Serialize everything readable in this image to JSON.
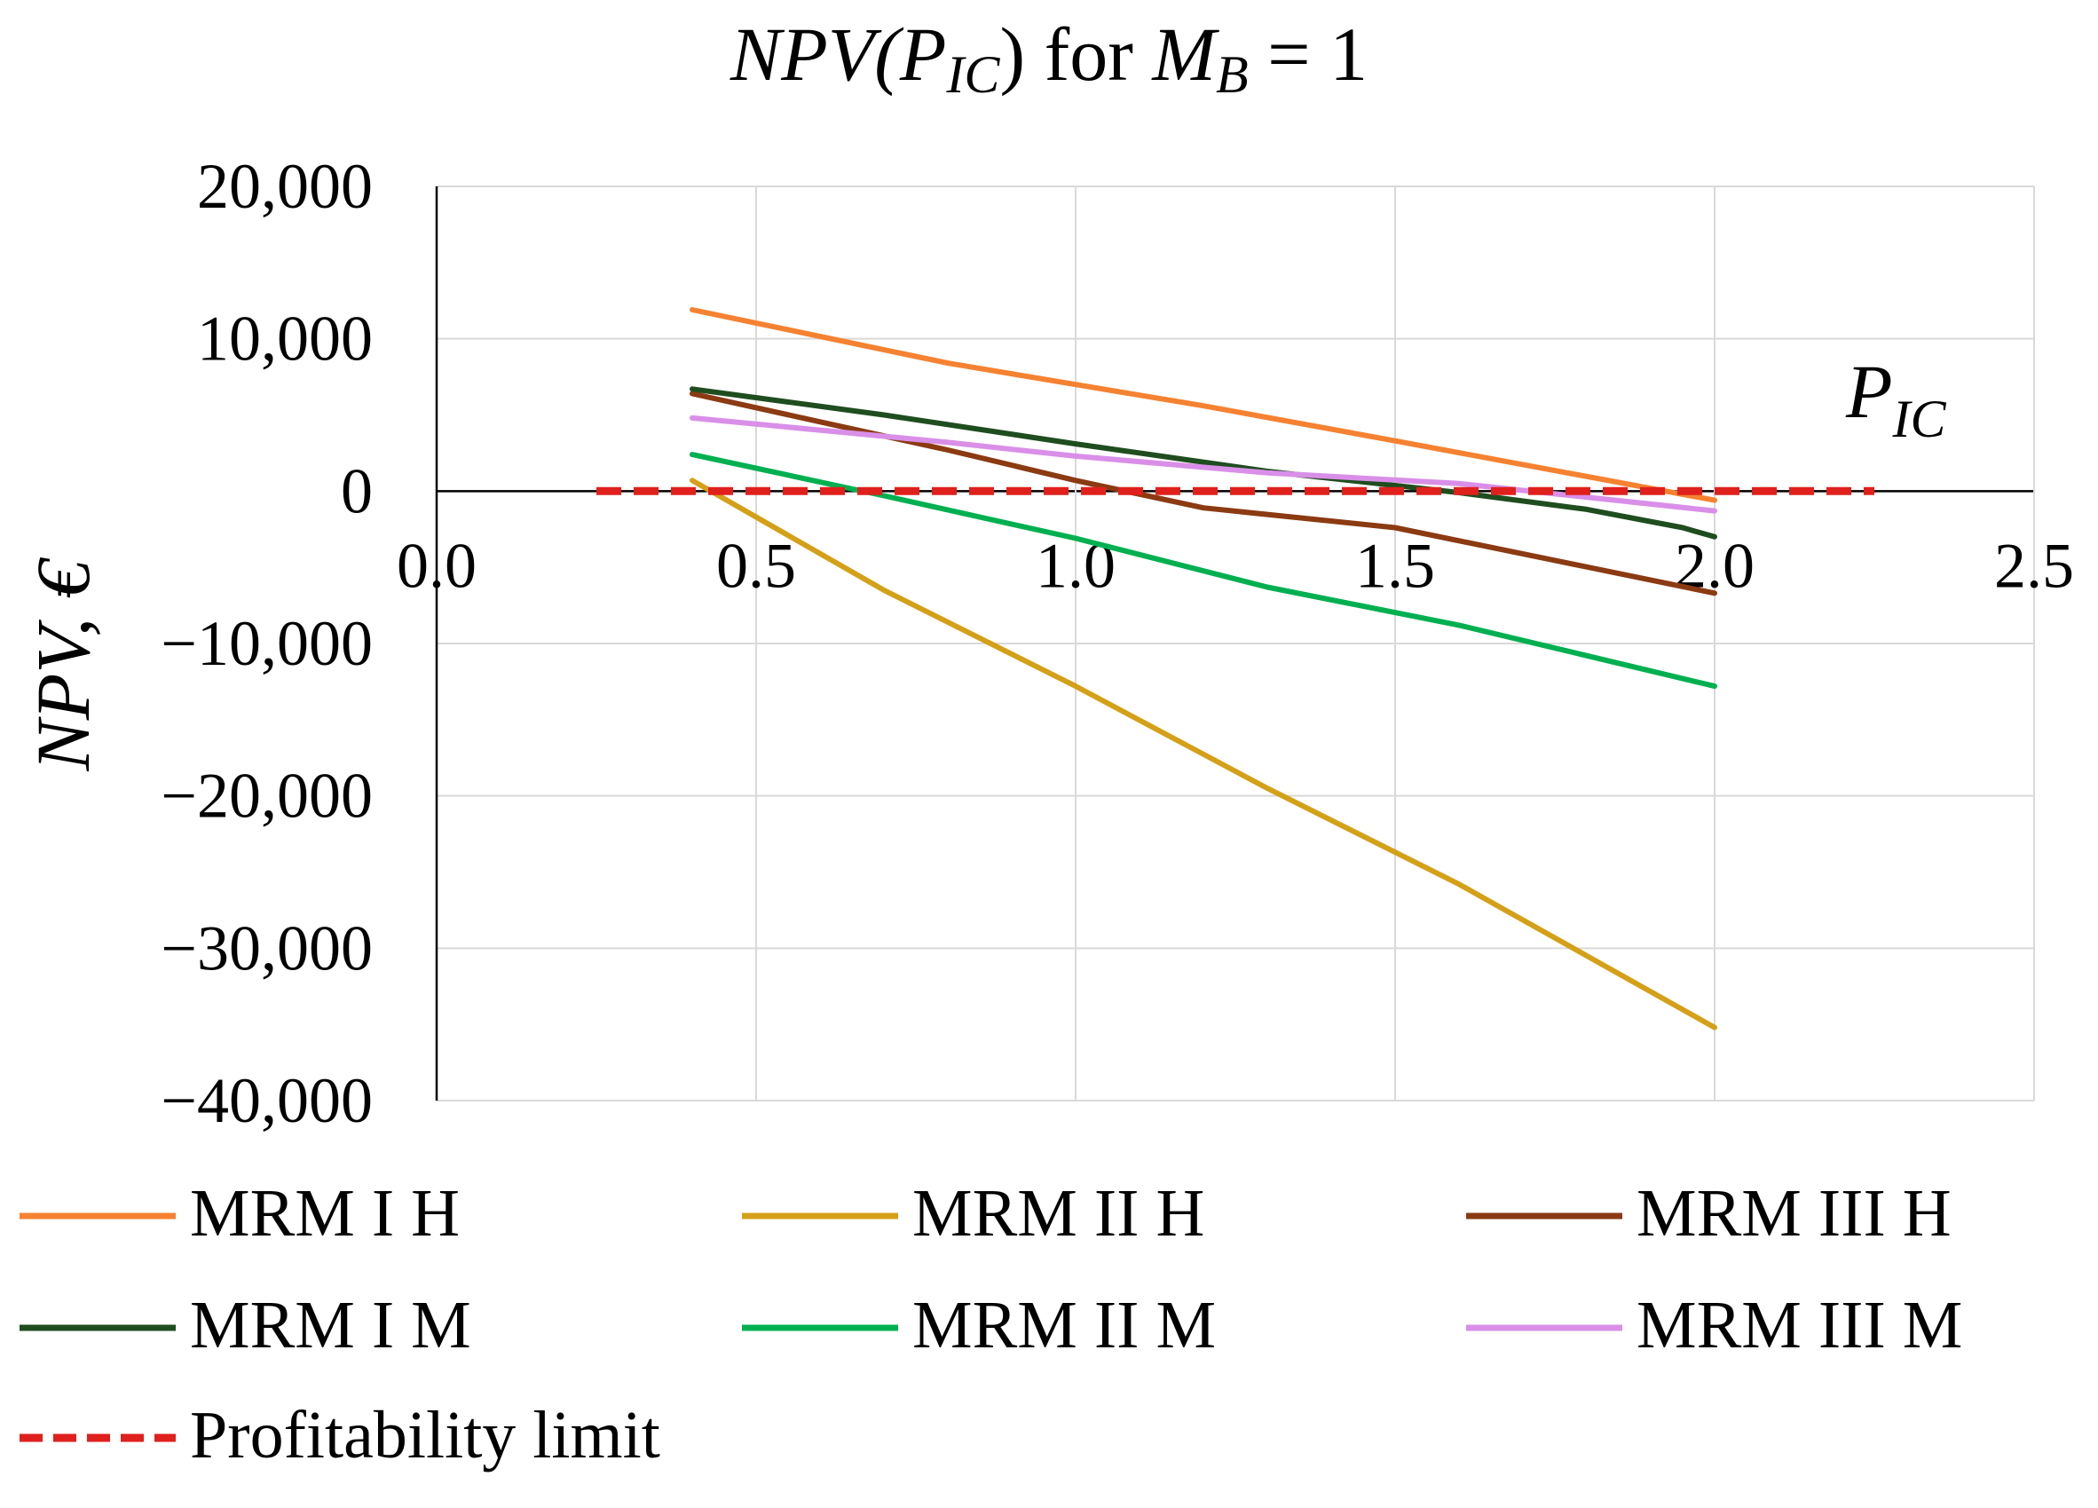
{
  "chart_data": {
    "type": "line",
    "title": {
      "main": "NPV(P",
      "main_sub": "IC",
      "main_close": ")",
      "for": " for ",
      "mb": "M",
      "mb_sub": "B",
      "equals": " = 1"
    },
    "xlabel": {
      "main": "P",
      "sub": "IC"
    },
    "ylabel": "NPV, €",
    "xlim": [
      0.0,
      2.5
    ],
    "ylim": [
      -40000,
      20000
    ],
    "x_ticks": [
      0.0,
      0.5,
      1.0,
      1.5,
      2.0,
      2.5
    ],
    "x_tick_labels": [
      "0.0",
      "0.5",
      "1.0",
      "1.5",
      "2.0",
      "2.5"
    ],
    "y_ticks": [
      20000,
      10000,
      0,
      -10000,
      -20000,
      -30000,
      -40000
    ],
    "y_tick_labels": [
      "20,000",
      "10,000",
      "0",
      "−10,000",
      "−20,000",
      "−30,000",
      "−40,000"
    ],
    "grid": true,
    "legend_position": "bottom",
    "series": [
      {
        "name": "MRM I H",
        "color": "#f58231",
        "dashed": false,
        "x": [
          0.4,
          0.8,
          1.0,
          1.2,
          1.5,
          2.0
        ],
        "y": [
          11900,
          8400,
          7000,
          5600,
          3300,
          -600
        ]
      },
      {
        "name": "MRM II H",
        "color": "#d4a017",
        "dashed": false,
        "x": [
          0.4,
          0.7,
          1.0,
          1.3,
          1.6,
          2.0
        ],
        "y": [
          700,
          -6500,
          -12800,
          -19500,
          -25800,
          -35200
        ]
      },
      {
        "name": "MRM III H",
        "color": "#8b3a12",
        "dashed": false,
        "x": [
          0.4,
          0.8,
          1.0,
          1.2,
          1.5,
          2.0
        ],
        "y": [
          6400,
          2700,
          700,
          -1100,
          -2400,
          -6700
        ]
      },
      {
        "name": "MRM I M",
        "color": "#1f4d1f",
        "dashed": false,
        "x": [
          0.4,
          0.7,
          1.0,
          1.3,
          1.6,
          1.8,
          1.95,
          2.0
        ],
        "y": [
          6700,
          5000,
          3100,
          1300,
          -100,
          -1200,
          -2400,
          -3000
        ]
      },
      {
        "name": "MRM II M",
        "color": "#00b050",
        "dashed": false,
        "x": [
          0.4,
          0.7,
          1.0,
          1.3,
          1.6,
          2.0
        ],
        "y": [
          2400,
          -300,
          -3100,
          -6300,
          -8800,
          -12800
        ]
      },
      {
        "name": "MRM III M",
        "color": "#d98fe8",
        "dashed": false,
        "x": [
          0.4,
          0.8,
          1.0,
          1.3,
          1.6,
          2.0
        ],
        "y": [
          4800,
          3200,
          2300,
          1200,
          500,
          -1300
        ]
      },
      {
        "name": "Profitability limit",
        "color": "#e0201c",
        "dashed": true,
        "x": [
          0.25,
          2.25
        ],
        "y": [
          0,
          0
        ]
      }
    ]
  }
}
